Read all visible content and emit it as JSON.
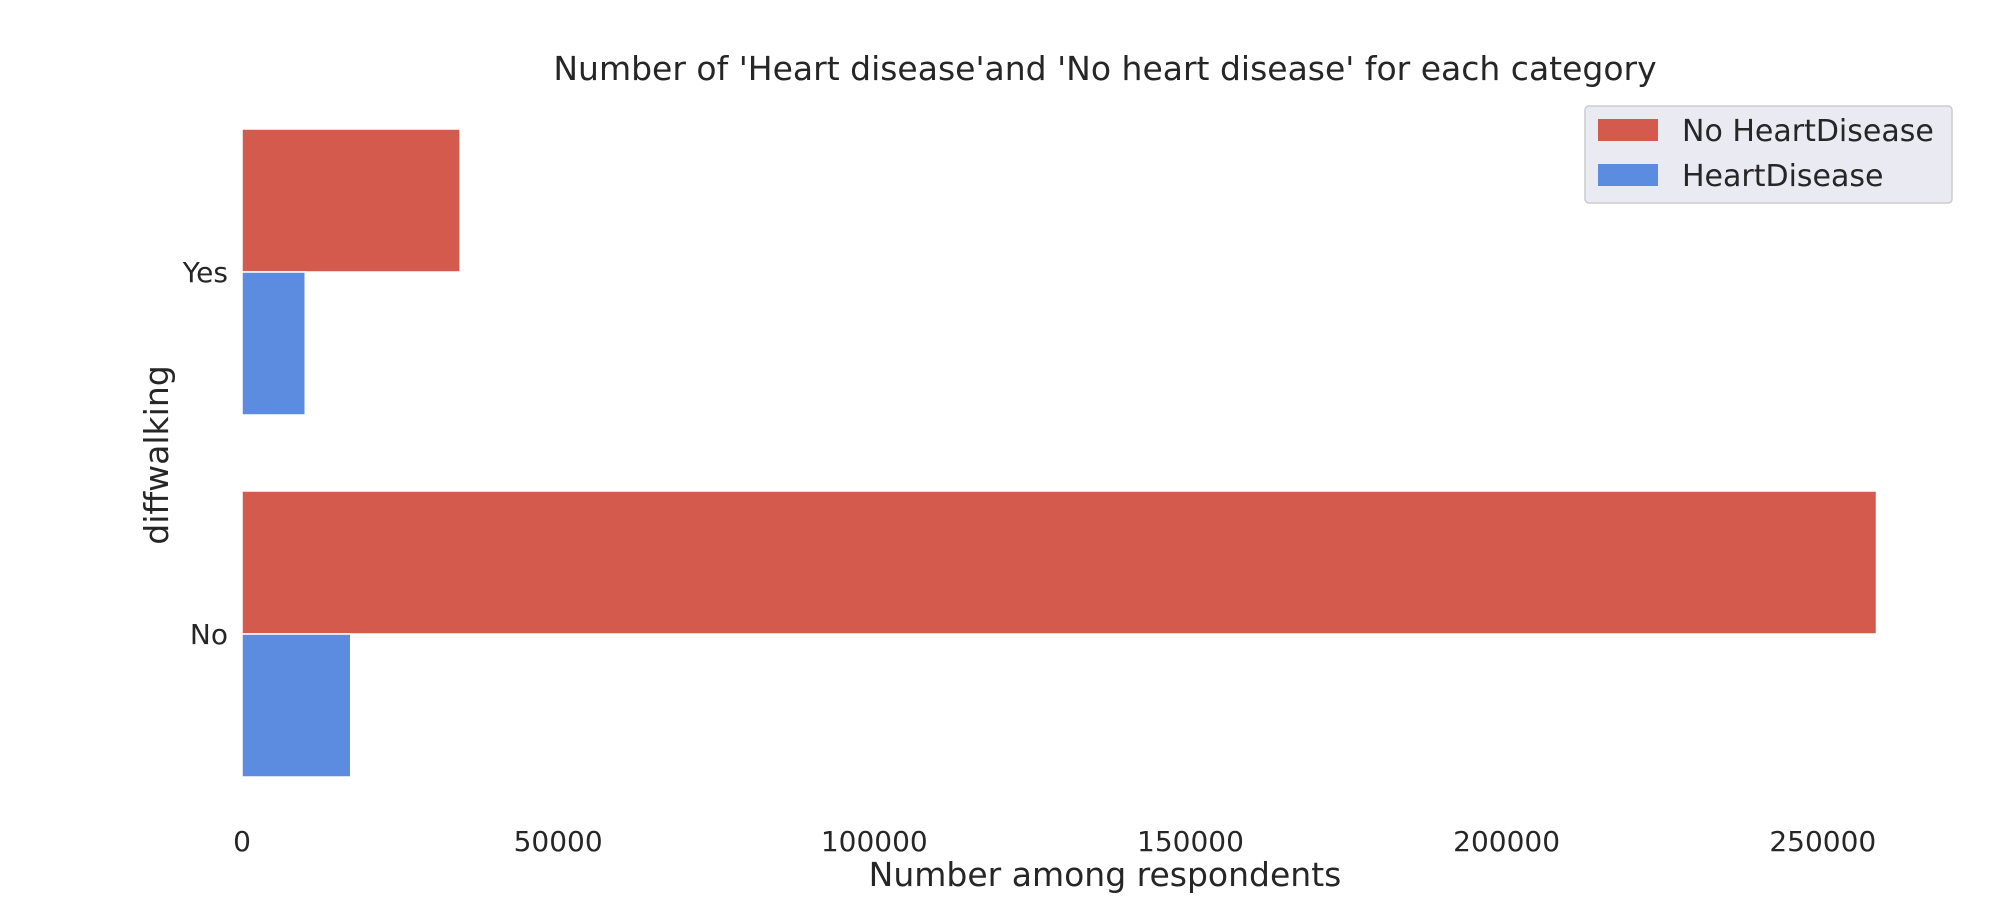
{
  "chart_data": {
    "type": "bar",
    "orientation": "horizontal",
    "title": "Number of 'Heart disease'and 'No heart disease' for each category",
    "xlabel": "Number among respondents",
    "ylabel": "diffwalking",
    "categories": [
      "Yes",
      "No"
    ],
    "series": [
      {
        "name": "No HeartDisease",
        "color": "#d45a4e",
        "values": [
          34500,
          258500
        ]
      },
      {
        "name": "HeartDisease",
        "color": "#5b8ce0",
        "values": [
          10000,
          17200
        ]
      }
    ],
    "xlim": [
      0,
      260000
    ],
    "xticks": [
      0,
      50000,
      100000,
      150000,
      200000,
      250000
    ],
    "xtick_labels": [
      "0",
      "50000",
      "100000",
      "150000",
      "200000",
      "250000"
    ],
    "legend": {
      "position": "top-right",
      "background": "#eaeaf2"
    },
    "grid": false
  }
}
